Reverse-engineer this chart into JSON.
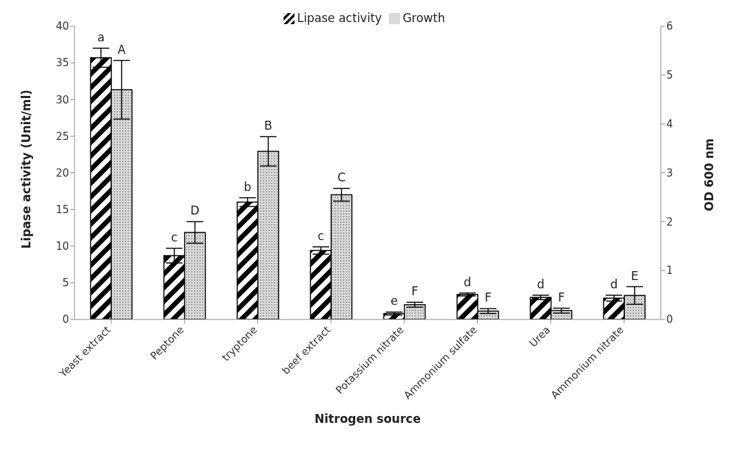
{
  "chart_data": {
    "type": "bar",
    "xlabel": "Nitrogen source",
    "ylabel": "Lipase activity (Unit/ml)",
    "y2label": "OD 600 nm",
    "categories": [
      "Yeast extract",
      "Peptone",
      "tryptone",
      "beef extract",
      "Potassium nitrate",
      "Ammonium sulfate",
      "Urea",
      "Ammonium nitrate"
    ],
    "series": [
      {
        "name": "Lipase activity",
        "color": "#000000",
        "values": [
          35.7,
          8.7,
          16.0,
          9.4,
          0.8,
          3.4,
          3.0,
          2.9
        ],
        "errors": [
          1.3,
          1.0,
          0.6,
          0.5,
          0.2,
          0.2,
          0.3,
          0.4
        ],
        "value_labels": [
          "a",
          "c",
          "b",
          "c",
          "e",
          "d",
          "d",
          "d"
        ]
      },
      {
        "name": "Growth",
        "color": "#d9d9d9",
        "axis": "y2",
        "values": [
          4.7,
          1.78,
          3.44,
          2.55,
          0.3,
          0.17,
          0.18,
          0.49
        ],
        "errors": [
          0.6,
          0.22,
          0.3,
          0.13,
          0.05,
          0.05,
          0.05,
          0.18
        ],
        "value_labels": [
          "A",
          "D",
          "B",
          "C",
          "F",
          "F",
          "F",
          "E"
        ]
      }
    ],
    "ylim": [
      0,
      40
    ],
    "yticks": [
      0,
      5,
      10,
      15,
      20,
      25,
      30,
      35,
      40
    ],
    "y2lim": [
      0,
      6
    ],
    "y2ticks": [
      0,
      1,
      2,
      3,
      4,
      5,
      6
    ],
    "legend": "top",
    "grid": false
  }
}
